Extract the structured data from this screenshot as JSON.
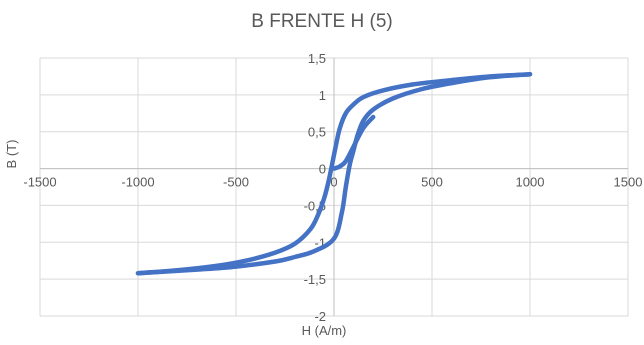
{
  "chart_data": {
    "type": "scatter",
    "title": "B FRENTE H (5)",
    "xlabel": "H (A/m)",
    "ylabel": "B (T)",
    "xlim": [
      -1500,
      1500
    ],
    "ylim": [
      -2,
      1.5
    ],
    "xticks": [
      -1500,
      -1000,
      -500,
      0,
      500,
      1000,
      1500
    ],
    "yticks": [
      -2,
      -1.5,
      -1,
      -0.5,
      0,
      0.5,
      1,
      1.5
    ],
    "xtick_labels": [
      "-1500",
      "-1000",
      "-500",
      "0",
      "500",
      "1000",
      "1500"
    ],
    "ytick_labels": [
      "-2",
      "-1,5",
      "-1",
      "-0,5",
      "0",
      "0,5",
      "1",
      "1,5"
    ],
    "grid": true,
    "color": "#4472C4",
    "series": [
      {
        "x": [
          -1000,
          -800,
          -600,
          -450,
          -300,
          -200,
          -120,
          -80,
          -50,
          -30,
          -10,
          10,
          30,
          60,
          100,
          150,
          250,
          400,
          600,
          800,
          1000
        ],
        "y": [
          -1.42,
          -1.38,
          -1.32,
          -1.25,
          -1.14,
          -1.02,
          -0.82,
          -0.62,
          -0.4,
          -0.2,
          0.05,
          0.32,
          0.55,
          0.75,
          0.87,
          0.97,
          1.06,
          1.14,
          1.2,
          1.25,
          1.28
        ]
      },
      {
        "x": [
          1000,
          800,
          600,
          450,
          300,
          200,
          150,
          120,
          100,
          80,
          60,
          40,
          0,
          -100,
          -200,
          -300,
          -500,
          -700,
          -1000
        ],
        "y": [
          1.28,
          1.24,
          1.16,
          1.08,
          0.95,
          0.8,
          0.65,
          0.45,
          0.25,
          0.05,
          -0.25,
          -0.6,
          -0.95,
          -1.12,
          -1.2,
          -1.26,
          -1.33,
          -1.37,
          -1.42
        ]
      },
      {
        "x": [
          0,
          30,
          60,
          100,
          150,
          200
        ],
        "y": [
          0,
          0.03,
          0.1,
          0.3,
          0.55,
          0.7
        ]
      }
    ]
  }
}
